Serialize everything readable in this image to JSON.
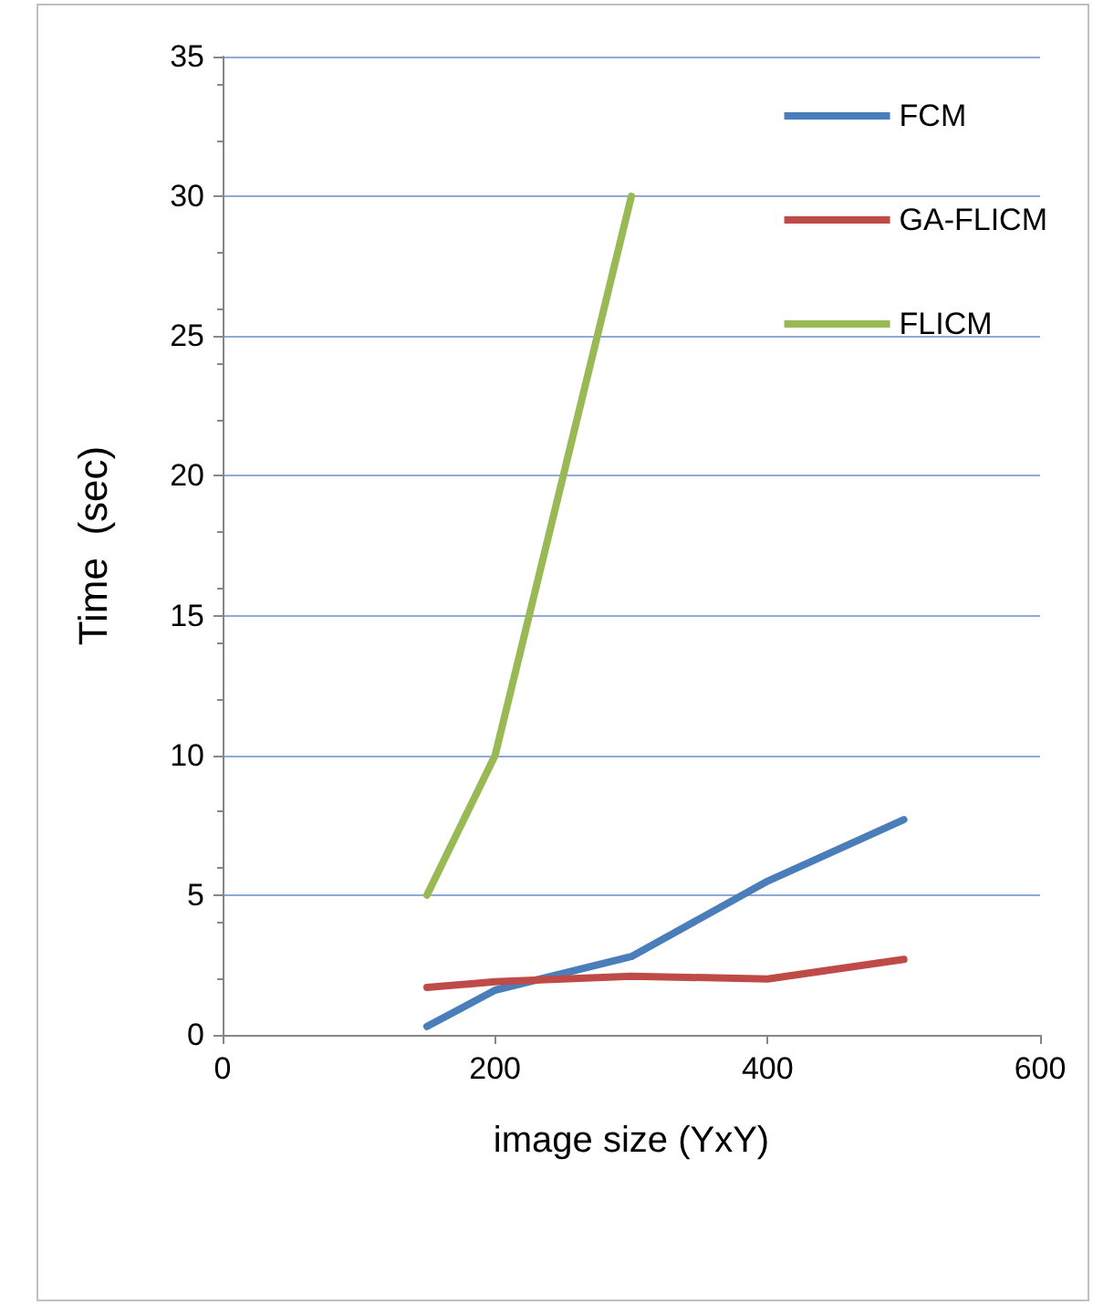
{
  "chart_data": {
    "type": "line",
    "xlabel": "image size (YxY)",
    "ylabel": "Time  (sec)",
    "xlim": [
      0,
      600
    ],
    "xticks": [
      0,
      200,
      400,
      600
    ],
    "ylim": [
      0,
      35
    ],
    "yticks": [
      0,
      5,
      10,
      15,
      20,
      25,
      30,
      35
    ],
    "grid": "y",
    "legend": "top right",
    "marker": "none",
    "line_style": "solid",
    "series": [
      {
        "name": "FCM",
        "color": "#4a7ebb",
        "x": [
          150,
          200,
          300,
          400,
          500
        ],
        "values": [
          0.3,
          1.6,
          2.8,
          5.5,
          7.7
        ]
      },
      {
        "name": "GA-FLICM",
        "color": "#be4b48",
        "x": [
          150,
          200,
          300,
          400,
          500
        ],
        "values": [
          1.7,
          1.9,
          2.1,
          2.0,
          2.7
        ]
      },
      {
        "name": "FLICM",
        "color": "#98b954",
        "x": [
          150,
          200,
          300
        ],
        "values": [
          5,
          10,
          30
        ]
      }
    ]
  }
}
